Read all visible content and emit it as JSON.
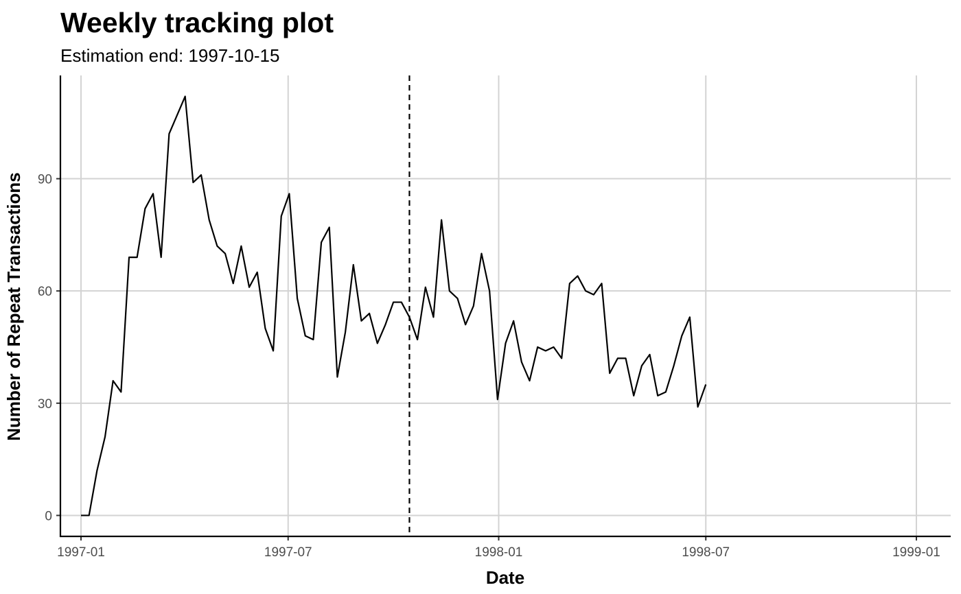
{
  "chart_data": {
    "type": "line",
    "title": "Weekly tracking plot",
    "subtitle": "Estimation end: 1997-10-15",
    "xlabel": "Date",
    "ylabel": "Number of Repeat Transactions",
    "x_ticks": [
      "1997-01-01",
      "1997-07-01",
      "1998-01-01",
      "1998-07-01",
      "1999-01-01"
    ],
    "x_tick_labels": [
      "1997-01",
      "1997-07",
      "1998-01",
      "1998-07",
      "1999-01"
    ],
    "y_ticks": [
      0,
      30,
      60,
      90
    ],
    "y_tick_labels": [
      "0",
      "30",
      "60",
      "90"
    ],
    "xlim": [
      "1996-12-14",
      "1999-01-31"
    ],
    "ylim": [
      -5.6,
      117.6
    ],
    "grid": true,
    "estimation_end": "1997-10-15",
    "series": [
      {
        "color": "#000000",
        "start_date": "1997-01-01",
        "interval_days": 7,
        "values": [
          0,
          0,
          12,
          21,
          36,
          33,
          69,
          69,
          82,
          86,
          69,
          102,
          107,
          112,
          89,
          91,
          79,
          72,
          70,
          62,
          72,
          61,
          65,
          50,
          44,
          80,
          86,
          58,
          48,
          47,
          73,
          77,
          37,
          49,
          67,
          52,
          54,
          46,
          51,
          57,
          57,
          53,
          47,
          61,
          53,
          79,
          60,
          58,
          51,
          56,
          70,
          60,
          31,
          46,
          52,
          41,
          36,
          45,
          44,
          45,
          42,
          62,
          64,
          60,
          59,
          62,
          38,
          42,
          42,
          32,
          40,
          43,
          32,
          33,
          40,
          48,
          53,
          29,
          35
        ]
      }
    ]
  }
}
